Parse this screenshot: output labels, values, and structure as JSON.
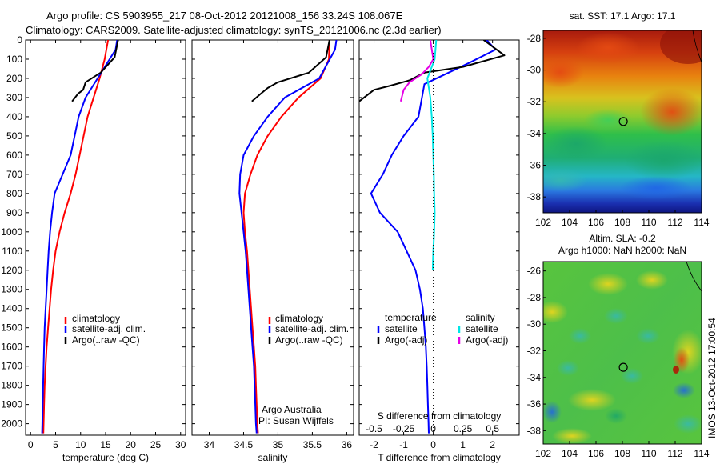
{
  "title_line1": "Argo profile: CS 5903955_217 08-Oct-2012 20121008_156 33.24S 108.067E",
  "title_line2": "Climatology: CARS2009. Satellite-adjusted climatology: synTS_20121006.nc (2.3d earlier)",
  "side_stamp": "IMOS 13-Oct-2012 17:00:54",
  "credit_line1": "Argo Australia",
  "credit_line2": "PI: Susan Wijffels",
  "chart_data": [
    {
      "id": "temperature",
      "type": "line",
      "xlabel": "temperature (deg C)",
      "xlim": [
        -1,
        31
      ],
      "xticks": [
        0,
        5,
        10,
        15,
        20,
        25,
        30
      ],
      "ylim": [
        2060,
        0
      ],
      "yticks": [
        0,
        100,
        200,
        300,
        400,
        500,
        600,
        700,
        800,
        900,
        1000,
        1100,
        1200,
        1300,
        1400,
        1500,
        1600,
        1700,
        1800,
        1900,
        2000
      ],
      "legend": [
        "climatology",
        "satellite-adj. clim.",
        "Argo(..raw -QC)"
      ],
      "series": [
        {
          "name": "climatology",
          "color": "#ff0000",
          "x": [
            15.5,
            14.8,
            13.8,
            12.6,
            11.4,
            10.6,
            9.8,
            9.0,
            8.0,
            6.8,
            5.8,
            5.0,
            4.5,
            4.1,
            3.8,
            3.5,
            3.2,
            3.0,
            2.8,
            2.7,
            2.6,
            2.55
          ],
          "y": [
            0,
            100,
            200,
            300,
            400,
            500,
            600,
            700,
            800,
            900,
            1000,
            1100,
            1200,
            1300,
            1400,
            1500,
            1600,
            1700,
            1800,
            1900,
            2000,
            2050
          ]
        },
        {
          "name": "satellite-adj. clim.",
          "color": "#0000ff",
          "x": [
            17.3,
            17.0,
            13.4,
            11.0,
            9.6,
            8.8,
            8.0,
            6.4,
            4.8,
            4.3,
            3.9,
            3.6,
            3.4,
            3.2,
            3.0,
            2.8,
            2.7,
            2.6,
            2.5,
            2.4,
            2.35,
            2.3
          ],
          "y": [
            0,
            50,
            200,
            300,
            400,
            500,
            600,
            700,
            800,
            900,
            1000,
            1100,
            1200,
            1300,
            1400,
            1500,
            1600,
            1700,
            1800,
            1900,
            2000,
            2050
          ]
        },
        {
          "name": "Argo(..raw -QC)",
          "color": "#000000",
          "x": [
            17.5,
            16.8,
            14.0,
            11.0,
            10.5,
            9.5,
            8.3
          ],
          "y": [
            0,
            90,
            170,
            220,
            260,
            280,
            320
          ]
        }
      ]
    },
    {
      "id": "salinity",
      "type": "line",
      "xlabel": "salinity",
      "xlim": [
        33.75,
        36.1
      ],
      "xticks": [
        34,
        34.5,
        35,
        35.5,
        36
      ],
      "ylim": [
        2060,
        0
      ],
      "legend": [
        "climatology",
        "satellite-adj. clim.",
        "Argo(..raw -QC)"
      ],
      "series": [
        {
          "name": "climatology",
          "color": "#ff0000",
          "x": [
            35.75,
            35.74,
            35.62,
            35.3,
            35.05,
            34.85,
            34.7,
            34.6,
            34.52,
            34.5,
            34.52,
            34.55,
            34.57,
            34.59,
            34.61,
            34.63,
            34.65,
            34.67,
            34.68,
            34.69,
            34.7,
            34.71
          ],
          "y": [
            0,
            100,
            200,
            300,
            400,
            500,
            600,
            700,
            800,
            900,
            1000,
            1100,
            1200,
            1300,
            1400,
            1500,
            1600,
            1700,
            1800,
            1900,
            2000,
            2050
          ]
        },
        {
          "name": "satellite-adj. clim.",
          "color": "#0000ff",
          "x": [
            35.85,
            35.83,
            35.6,
            35.1,
            34.85,
            34.65,
            34.5,
            34.45,
            34.44,
            34.47,
            34.5,
            34.53,
            34.55,
            34.57,
            34.59,
            34.61,
            34.63,
            34.65,
            34.66,
            34.67,
            34.68,
            34.69
          ],
          "y": [
            0,
            50,
            200,
            300,
            400,
            500,
            600,
            700,
            800,
            900,
            1000,
            1100,
            1200,
            1300,
            1400,
            1500,
            1600,
            1700,
            1800,
            1900,
            2000,
            2050
          ]
        },
        {
          "name": "Argo(..raw -QC)",
          "color": "#000000",
          "x": [
            35.75,
            35.7,
            35.45,
            35.0,
            34.85,
            34.75,
            34.62
          ],
          "y": [
            0,
            90,
            170,
            220,
            250,
            280,
            320
          ]
        }
      ]
    },
    {
      "id": "difference",
      "type": "line",
      "xlabel": "T difference from climatology",
      "xlabel2": "S difference from climatology",
      "xlim": [
        -2.5,
        2.9
      ],
      "xticks": [
        -2,
        -1,
        0,
        1,
        2
      ],
      "xticks2": [
        -0.5,
        -0.25,
        0,
        0.25,
        0.5
      ],
      "xticklabels2": [
        "-0.5",
        "-0.25",
        "0",
        "0.25",
        "0.5"
      ],
      "ylim": [
        2060,
        0
      ],
      "legend": [
        "temperature",
        "satellite",
        "Argo(-adj)",
        "salinity",
        "satellite",
        "Argo(-adj)"
      ],
      "series": [
        {
          "name": "temperature satellite",
          "color": "#0000ff",
          "x": [
            1.8,
            2.1,
            1.2,
            -0.3,
            -0.5,
            -1.0,
            -1.4,
            -1.7,
            -2.1,
            -1.8,
            -1.2,
            -0.9,
            -0.6,
            -0.45,
            -0.35,
            -0.3,
            -0.25,
            -0.22,
            -0.2,
            -0.18,
            -0.16,
            -0.15
          ],
          "y": [
            0,
            50,
            120,
            230,
            400,
            500,
            600,
            700,
            800,
            900,
            1000,
            1100,
            1200,
            1300,
            1400,
            1500,
            1600,
            1700,
            1800,
            1900,
            2000,
            2050
          ]
        },
        {
          "name": "temperature Argo(-adj)",
          "color": "#000000",
          "x": [
            1.7,
            2.4,
            1.0,
            -0.3,
            -0.8,
            -1.5,
            -2.0,
            -2.5
          ],
          "y": [
            0,
            80,
            140,
            170,
            210,
            240,
            260,
            320
          ]
        },
        {
          "name": "salinity satellite",
          "color": "#00e6e6",
          "x": [
            0.1,
            0.05,
            -0.2,
            -0.1,
            -0.05,
            -0.02,
            0.0,
            0.02,
            0.03,
            0.05,
            0.03,
            0.0,
            -0.02
          ],
          "y": [
            0,
            100,
            200,
            300,
            400,
            500,
            600,
            700,
            800,
            900,
            1000,
            1100,
            1200
          ]
        },
        {
          "name": "salinity Argo(-adj)",
          "color": "#e600e6",
          "x": [
            -0.1,
            0.0,
            -0.15,
            -0.4,
            -0.8,
            -1.0,
            -1.1
          ],
          "y": [
            0,
            100,
            140,
            180,
            220,
            260,
            320
          ]
        }
      ]
    },
    {
      "id": "sst_map",
      "type": "heatmap",
      "title": "sat. SST: 17.1  Argo: 17.1",
      "xlim": [
        102,
        114
      ],
      "xticks": [
        102,
        104,
        106,
        108,
        110,
        112,
        114
      ],
      "ylim": [
        -39,
        -27.5
      ],
      "yticks": [
        -28,
        -30,
        -32,
        -34,
        -36,
        -38
      ],
      "marker": {
        "lon": 108.067,
        "lat": -33.24
      }
    },
    {
      "id": "sla_map",
      "type": "heatmap",
      "title": "Altim. SLA: -0.2",
      "subtitle": "Argo h1000: NaN h2000: NaN",
      "xlim": [
        102,
        114
      ],
      "xticks": [
        102,
        104,
        106,
        108,
        110,
        112,
        114
      ],
      "ylim": [
        -39,
        -25.3
      ],
      "yticks": [
        -26,
        -28,
        -30,
        -32,
        -34,
        -36,
        -38
      ],
      "marker": {
        "lon": 108.067,
        "lat": -33.24
      }
    }
  ]
}
